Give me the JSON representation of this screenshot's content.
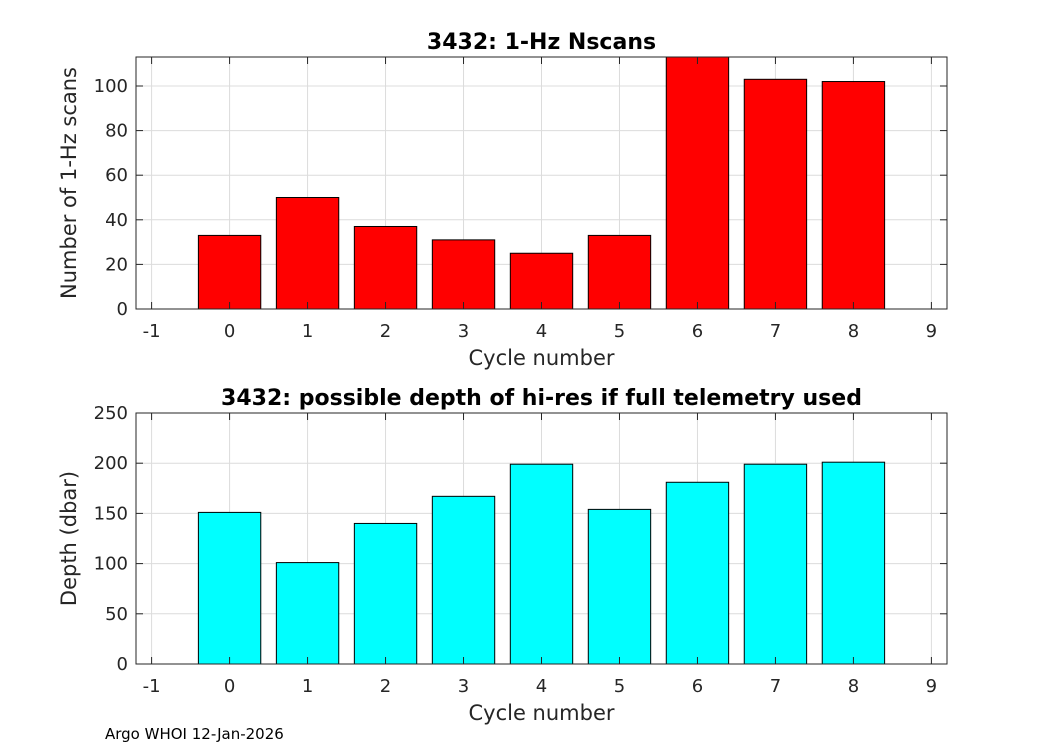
{
  "chart_data": [
    {
      "type": "bar",
      "title": "3432: 1-Hz Nscans",
      "xlabel": "Cycle number",
      "ylabel": "Number of 1-Hz scans",
      "x": [
        0,
        1,
        2,
        3,
        4,
        5,
        6,
        7,
        8
      ],
      "values": [
        33,
        50,
        37,
        31,
        25,
        33,
        113,
        103,
        102
      ],
      "xlim": [
        -1.2,
        9.2
      ],
      "ylim": [
        0,
        113
      ],
      "xticks": [
        -1,
        0,
        1,
        2,
        3,
        4,
        5,
        6,
        7,
        8,
        9
      ],
      "yticks": [
        0,
        20,
        40,
        60,
        80,
        100
      ],
      "bar_color": "#ff0000",
      "grid": true
    },
    {
      "type": "bar",
      "title": "3432: possible depth of hi-res if full telemetry used",
      "xlabel": "Cycle number",
      "ylabel": "Depth (dbar)",
      "x": [
        0,
        1,
        2,
        3,
        4,
        5,
        6,
        7,
        8
      ],
      "values": [
        151,
        101,
        140,
        167,
        199,
        154,
        181,
        199,
        201
      ],
      "xlim": [
        -1.2,
        9.2
      ],
      "ylim": [
        0,
        250
      ],
      "xticks": [
        -1,
        0,
        1,
        2,
        3,
        4,
        5,
        6,
        7,
        8,
        9
      ],
      "yticks": [
        0,
        50,
        100,
        150,
        200,
        250
      ],
      "bar_color": "#00ffff",
      "grid": true
    }
  ],
  "footer": {
    "text": "Argo WHOI 12-Jan-2026"
  }
}
